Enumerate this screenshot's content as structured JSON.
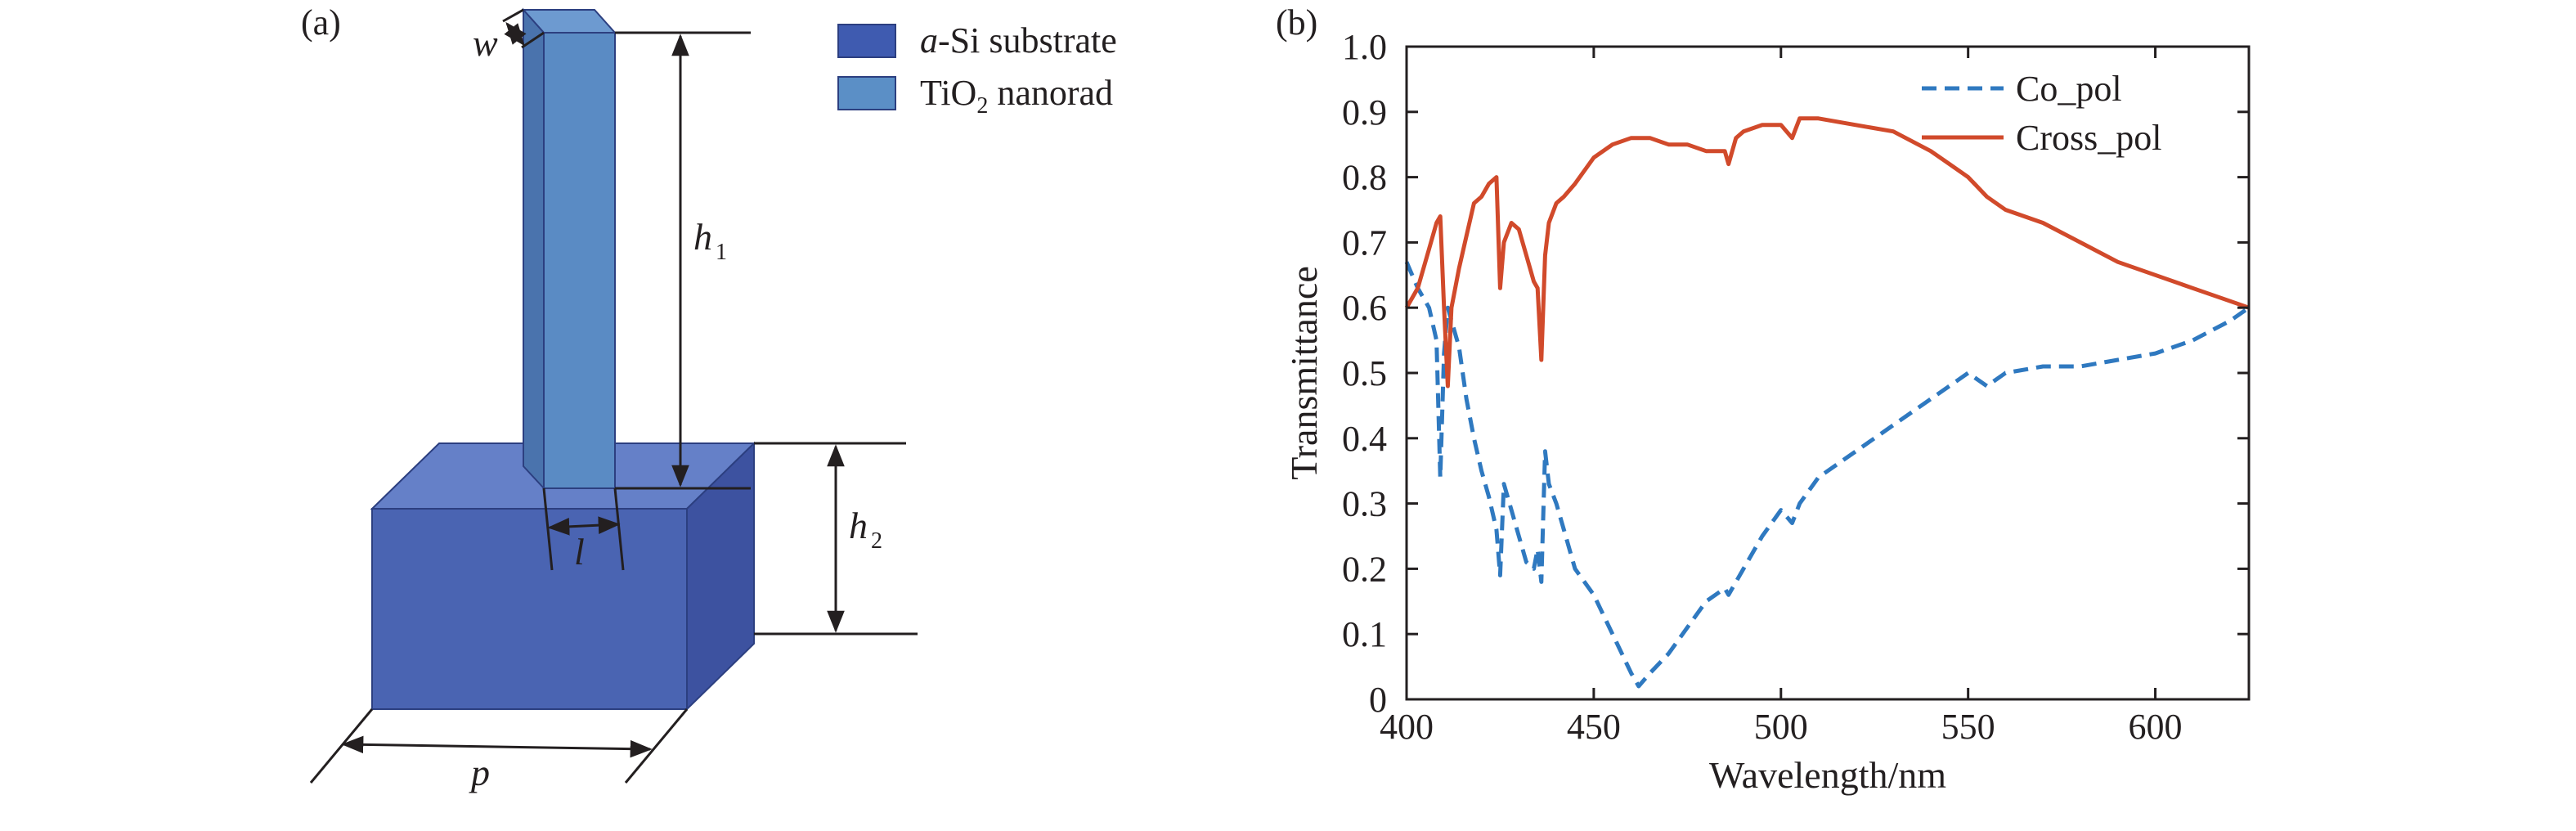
{
  "panel_a": {
    "label": "(a)",
    "dimension_labels": {
      "w": "w",
      "h1": "h",
      "h1_sub": "1",
      "h2": "h",
      "h2_sub": "2",
      "l": "l",
      "p": "p"
    },
    "legend": [
      {
        "italic_prefix": "a",
        "text": "-Si substrate",
        "sub": "",
        "suffix": "",
        "color": "#3f5bb0"
      },
      {
        "italic_prefix": "",
        "text": "TiO",
        "sub": "2",
        "suffix": " nanorad",
        "color": "#5b8fc6"
      }
    ],
    "colors": {
      "substrate_front": "#4a64b2",
      "substrate_top": "#6580c8",
      "substrate_side": "#3d52a0",
      "rod_front": "#5a8bc4",
      "rod_side": "#4a73ad",
      "rod_top": "#6d9ad0"
    }
  },
  "chart_data": {
    "panel_label": "(b)",
    "type": "line",
    "title": "",
    "xlabel": "Wavelength/nm",
    "ylabel": "Transmittance",
    "xlim": [
      400,
      625
    ],
    "ylim": [
      0,
      1.0
    ],
    "x_ticks": [
      "400",
      "450",
      "500",
      "550",
      "600"
    ],
    "x_tick_values": [
      400,
      450,
      500,
      550,
      600
    ],
    "y_ticks": [
      "0",
      "0.1",
      "0.2",
      "0.3",
      "0.4",
      "0.5",
      "0.6",
      "0.7",
      "0.8",
      "0.9",
      "1.0"
    ],
    "y_tick_values": [
      0,
      0.1,
      0.2,
      0.3,
      0.4,
      0.5,
      0.6,
      0.7,
      0.8,
      0.9,
      1.0
    ],
    "grid": false,
    "legend_position": "top-right",
    "series": [
      {
        "name": "Co_pol",
        "color": "#2f79c0",
        "style": "dashed",
        "x": [
          400,
          403,
          406,
          408,
          409,
          410,
          411,
          412,
          414,
          416,
          418,
          420,
          422,
          424,
          425,
          426,
          428,
          430,
          432,
          434,
          435,
          436,
          437,
          438,
          440,
          442,
          445,
          450,
          455,
          460,
          462,
          465,
          470,
          475,
          480,
          485,
          486,
          488,
          490,
          495,
          500,
          503,
          505,
          510,
          520,
          530,
          540,
          545,
          550,
          555,
          560,
          570,
          580,
          590,
          600,
          610,
          620,
          625
        ],
        "y": [
          0.67,
          0.63,
          0.6,
          0.55,
          0.34,
          0.53,
          0.6,
          0.58,
          0.54,
          0.46,
          0.4,
          0.35,
          0.31,
          0.26,
          0.19,
          0.33,
          0.29,
          0.25,
          0.21,
          0.2,
          0.23,
          0.18,
          0.38,
          0.33,
          0.3,
          0.26,
          0.2,
          0.16,
          0.1,
          0.04,
          0.02,
          0.04,
          0.07,
          0.11,
          0.15,
          0.17,
          0.16,
          0.18,
          0.2,
          0.25,
          0.29,
          0.27,
          0.3,
          0.34,
          0.38,
          0.42,
          0.46,
          0.48,
          0.5,
          0.48,
          0.5,
          0.51,
          0.51,
          0.52,
          0.53,
          0.55,
          0.58,
          0.6
        ]
      },
      {
        "name": "Cross_pol",
        "color": "#d14a2b",
        "style": "solid",
        "x": [
          400,
          403,
          406,
          408,
          409,
          410,
          411,
          412,
          414,
          416,
          418,
          420,
          422,
          424,
          425,
          426,
          428,
          430,
          432,
          434,
          435,
          436,
          437,
          438,
          440,
          442,
          445,
          450,
          455,
          460,
          462,
          465,
          470,
          475,
          480,
          485,
          486,
          488,
          490,
          495,
          500,
          503,
          505,
          510,
          520,
          530,
          540,
          545,
          550,
          555,
          560,
          570,
          580,
          590,
          600,
          610,
          620,
          625
        ],
        "y": [
          0.6,
          0.63,
          0.69,
          0.73,
          0.74,
          0.6,
          0.48,
          0.6,
          0.66,
          0.71,
          0.76,
          0.77,
          0.79,
          0.8,
          0.63,
          0.7,
          0.73,
          0.72,
          0.68,
          0.64,
          0.63,
          0.52,
          0.68,
          0.73,
          0.76,
          0.77,
          0.79,
          0.83,
          0.85,
          0.86,
          0.86,
          0.86,
          0.85,
          0.85,
          0.84,
          0.84,
          0.82,
          0.86,
          0.87,
          0.88,
          0.88,
          0.86,
          0.89,
          0.89,
          0.88,
          0.87,
          0.84,
          0.82,
          0.8,
          0.77,
          0.75,
          0.73,
          0.7,
          0.67,
          0.65,
          0.63,
          0.61,
          0.6
        ]
      }
    ]
  }
}
